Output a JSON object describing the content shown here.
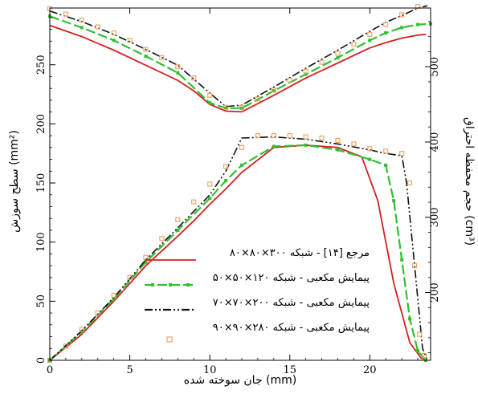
{
  "chart_data": {
    "type": "line",
    "xlabel": "جان سوخته شده (mm)",
    "ylabel_left": "سطح سوزش (mm²)",
    "ylabel_right": "حجم محفظه احتراق (cm³)",
    "xlim": [
      0,
      23.8
    ],
    "ylim_left": [
      0,
      298
    ],
    "ylim_right": [
      110,
      578
    ],
    "x_ticks": [
      0,
      5,
      10,
      15,
      20
    ],
    "y_ticks_left": [
      0,
      50,
      100,
      150,
      200,
      250
    ],
    "y_ticks_right": [
      200,
      300,
      400,
      500
    ],
    "grid": false,
    "legend_position": "bottom-center",
    "series": [
      {
        "name": "مرجع [۱۴] - شبکه ۳۰۰×۸۰×۸۰",
        "color": "#d42020",
        "style": "solid",
        "burn_area": {
          "x": [
            0,
            2,
            4,
            6,
            8,
            9,
            10,
            11,
            12,
            14,
            16,
            18,
            19.5,
            20.5,
            21.5,
            22.5,
            23.2,
            23.6
          ],
          "y": [
            0,
            22,
            50,
            80,
            105,
            118,
            132,
            145,
            159,
            180,
            182,
            180,
            172,
            135,
            65,
            15,
            2,
            0
          ]
        },
        "volume": {
          "x": [
            0,
            2,
            4,
            6,
            8,
            9,
            10,
            11,
            12,
            14,
            16,
            18,
            20,
            21,
            22,
            23,
            23.5
          ],
          "y": [
            555,
            540,
            522,
            502,
            482,
            468,
            450,
            441,
            440,
            462,
            485,
            505,
            525,
            532,
            538,
            542,
            543
          ]
        }
      },
      {
        "name": "پیمایش مکعبی - شبکه ۱۲۰×۵۰×۵۰",
        "color": "#2fc02f",
        "style": "dashed-square",
        "burn_area": {
          "x": [
            0,
            2,
            4,
            6,
            8,
            10,
            11,
            12,
            14,
            16,
            18,
            20,
            21,
            21.5,
            22,
            22.5,
            23,
            23.5
          ],
          "y": [
            0,
            24,
            52,
            83,
            110,
            137,
            152,
            165,
            181,
            182,
            178,
            170,
            165,
            135,
            85,
            35,
            8,
            0
          ]
        },
        "volume": {
          "x": [
            0,
            2,
            4,
            6,
            8,
            10,
            11,
            12,
            14,
            16,
            18,
            20,
            21,
            22,
            23,
            23.8
          ],
          "y": [
            567,
            552,
            535,
            514,
            492,
            452,
            445,
            445,
            468,
            490,
            512,
            535,
            545,
            552,
            556,
            557
          ]
        }
      },
      {
        "name": "پیمایش مکعبی - شبکه ۲۰۰×۷۰×۷۰",
        "color": "#111111",
        "style": "dash-dot-dot",
        "burn_area": {
          "x": [
            0,
            2,
            4,
            6,
            8,
            10,
            11,
            12,
            14,
            16,
            18,
            20,
            21,
            22,
            22.3,
            22.8,
            23.3,
            23.6
          ],
          "y": [
            0,
            25,
            53,
            85,
            112,
            140,
            160,
            188,
            189,
            187,
            183,
            178,
            175,
            173,
            150,
            80,
            10,
            0
          ]
        },
        "volume": {
          "x": [
            0,
            2,
            4,
            6,
            8,
            10,
            11,
            12,
            14,
            16,
            18,
            20,
            21,
            22,
            23,
            23.6
          ],
          "y": [
            574,
            560,
            543,
            523,
            502,
            465,
            447,
            449,
            473,
            498,
            522,
            547,
            559,
            568,
            578,
            581
          ]
        }
      },
      {
        "name": "پیمایش مکعبی - شبکه ۲۸۰×۹۰×۹۰",
        "color": "#e8a060",
        "style": "square-markers",
        "burn_area": {
          "x": [
            0,
            1,
            2,
            3,
            4,
            5,
            6,
            7,
            8,
            9,
            10,
            11,
            12,
            13,
            14,
            15,
            16,
            17,
            18,
            19,
            20,
            21,
            22,
            22.5,
            22.8,
            23.1,
            23.4
          ],
          "y": [
            0,
            12,
            26,
            40,
            55,
            70,
            87,
            103,
            119,
            134,
            149,
            164,
            180,
            190,
            190,
            190,
            189,
            188,
            186,
            183,
            179,
            177,
            175,
            150,
            80,
            22,
            4
          ]
        },
        "volume": {
          "x": [
            0,
            1,
            2,
            3,
            4,
            5,
            6,
            7,
            8,
            9,
            10,
            11,
            12,
            13,
            14,
            15,
            16,
            17,
            18,
            19,
            20,
            21,
            22,
            23
          ],
          "y": [
            577,
            570,
            562,
            553,
            545,
            535,
            523,
            512,
            500,
            485,
            462,
            446,
            446,
            457,
            469,
            482,
            494,
            506,
            518,
            530,
            543,
            556,
            569,
            580
          ]
        }
      }
    ]
  }
}
